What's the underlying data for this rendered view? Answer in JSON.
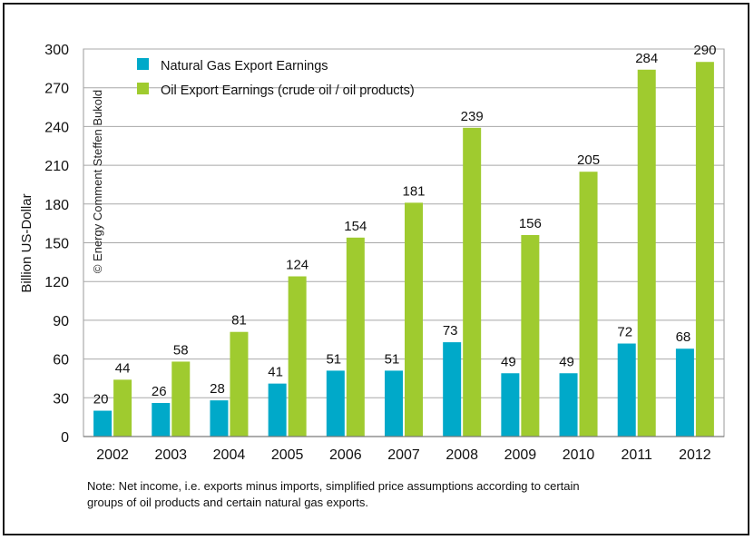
{
  "chart_data": {
    "type": "bar",
    "categories": [
      "2002",
      "2003",
      "2004",
      "2005",
      "2006",
      "2007",
      "2008",
      "2009",
      "2010",
      "2011",
      "2012"
    ],
    "series": [
      {
        "name": "Natural Gas Export Earnings",
        "color": "#00a9c9",
        "values": [
          20,
          26,
          28,
          41,
          51,
          51,
          73,
          49,
          49,
          72,
          68
        ]
      },
      {
        "name": "Oil Export Earnings (crude oil / oil products)",
        "color": "#9fcb2f",
        "values": [
          44,
          58,
          81,
          124,
          154,
          181,
          239,
          156,
          205,
          284,
          290
        ]
      }
    ],
    "data_labels": {
      "gas": [
        "20",
        "26",
        "28",
        "41",
        "51",
        "51",
        "73",
        "49",
        "49",
        "72",
        "68"
      ],
      "oil": [
        "44",
        "58",
        "81",
        "124",
        "154",
        "181",
        "239",
        "156",
        "205",
        "284",
        "290"
      ]
    },
    "ylabel": "Billion US-Dollar",
    "ylim": [
      0,
      300
    ],
    "yticks": [
      "0",
      "30",
      "60",
      "90",
      "120",
      "150",
      "180",
      "210",
      "240",
      "270",
      "300"
    ],
    "grid": true,
    "legend": "top-left",
    "watermark": "© Energy Comment Steffen Bukold"
  },
  "note": {
    "line1": "Note: Net income, i.e. exports minus imports, simplified price assumptions according to certain",
    "line2": "groups of oil products and certain natural gas exports."
  }
}
